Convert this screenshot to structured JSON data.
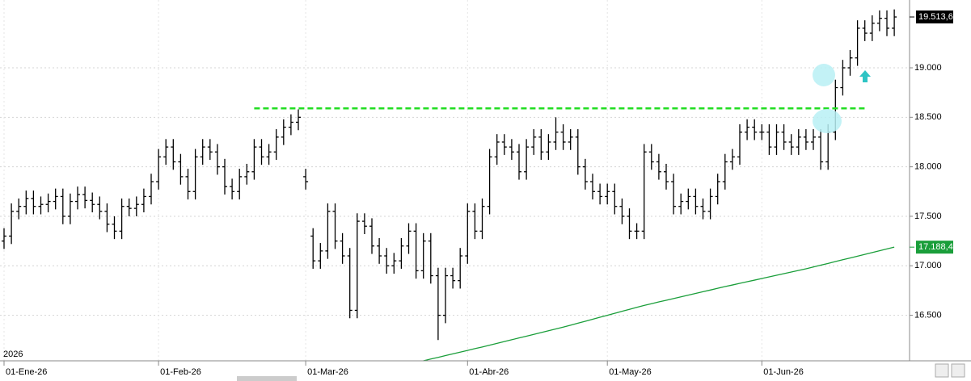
{
  "chart_data": {
    "type": "ohlc",
    "year_label": "2026",
    "categories": [
      "01-Ene-26",
      null,
      null,
      null,
      null,
      null,
      null,
      null,
      null,
      null,
      null,
      null,
      null,
      null,
      null,
      null,
      null,
      null,
      null,
      null,
      null,
      "01-Feb-26",
      null,
      null,
      null,
      null,
      null,
      null,
      null,
      null,
      null,
      null,
      null,
      null,
      null,
      null,
      null,
      null,
      null,
      null,
      null,
      "01-Mar-26",
      null,
      null,
      null,
      null,
      null,
      null,
      null,
      null,
      null,
      null,
      null,
      null,
      null,
      null,
      null,
      null,
      null,
      null,
      null,
      null,
      null,
      "01-Abr-26",
      null,
      null,
      null,
      null,
      null,
      null,
      null,
      null,
      null,
      null,
      null,
      null,
      null,
      null,
      null,
      null,
      null,
      null,
      "01-May-26",
      null,
      null,
      null,
      null,
      null,
      null,
      null,
      null,
      null,
      null,
      null,
      null,
      null,
      null,
      null,
      null,
      null,
      null,
      null,
      null,
      "01-Jun-26",
      null,
      null,
      null,
      null,
      null,
      null,
      null,
      null,
      null,
      null,
      null,
      null,
      null,
      null,
      null,
      null,
      null,
      null
    ],
    "open": [
      17250,
      17300,
      17550,
      17600,
      17680,
      17600,
      17620,
      17650,
      17700,
      17500,
      17650,
      17720,
      17660,
      17620,
      17550,
      17420,
      17350,
      17600,
      17580,
      17620,
      17700,
      17850,
      18100,
      18200,
      18050,
      17900,
      17750,
      18100,
      18200,
      18150,
      18000,
      17800,
      17750,
      17900,
      17950,
      18200,
      18100,
      18150,
      18300,
      18400,
      18450,
      17900,
      17300,
      17050,
      17150,
      17550,
      17250,
      17100,
      16550,
      17450,
      17400,
      17200,
      17100,
      17000,
      17050,
      17200,
      17350,
      16950,
      17250,
      16900,
      16500,
      16900,
      16850,
      17100,
      17550,
      17350,
      17600,
      18100,
      18250,
      18200,
      18150,
      17950,
      18200,
      18300,
      18150,
      18250,
      18350,
      18250,
      18300,
      18000,
      17850,
      17750,
      17700,
      17750,
      17600,
      17500,
      17350,
      17350,
      18150,
      18050,
      17950,
      17850,
      17600,
      17650,
      17700,
      17600,
      17550,
      17700,
      17850,
      18050,
      18100,
      18350,
      18400,
      18350,
      18350,
      18200,
      18350,
      18250,
      18200,
      18300,
      18250,
      18300,
      18050,
      18350,
      18800,
      19000,
      19100,
      19400,
      19350,
      19450,
      19500,
      19400
    ],
    "high": [
      17380,
      17630,
      17680,
      17760,
      17760,
      17700,
      17730,
      17780,
      17780,
      17730,
      17800,
      17800,
      17740,
      17700,
      17630,
      17500,
      17680,
      17680,
      17700,
      17780,
      17930,
      18180,
      18280,
      18280,
      18130,
      17980,
      18180,
      18280,
      18280,
      18230,
      18080,
      17880,
      17980,
      18030,
      18280,
      18280,
      18230,
      18380,
      18480,
      18530,
      18580,
      17980,
      17380,
      17230,
      17630,
      17630,
      17330,
      17180,
      17530,
      17530,
      17480,
      17280,
      17180,
      17130,
      17280,
      17430,
      17430,
      17330,
      17330,
      16980,
      16980,
      16980,
      17180,
      17630,
      17630,
      17680,
      18180,
      18330,
      18330,
      18280,
      18230,
      18280,
      18380,
      18380,
      18330,
      18500,
      18430,
      18380,
      18380,
      18080,
      17930,
      17830,
      17830,
      17830,
      17680,
      17580,
      17430,
      18230,
      18230,
      18130,
      18030,
      17930,
      17730,
      17780,
      17780,
      17680,
      17780,
      17930,
      18130,
      18180,
      18430,
      18480,
      18480,
      18430,
      18430,
      18430,
      18430,
      18330,
      18380,
      18380,
      18380,
      18380,
      18430,
      18880,
      19080,
      19180,
      19480,
      19480,
      19530,
      19580,
      19580,
      19590
    ],
    "low": [
      17170,
      17220,
      17470,
      17520,
      17520,
      17520,
      17540,
      17570,
      17420,
      17420,
      17570,
      17580,
      17540,
      17470,
      17340,
      17270,
      17270,
      17500,
      17500,
      17540,
      17620,
      17770,
      18020,
      17970,
      17820,
      17670,
      17670,
      18020,
      18070,
      17920,
      17720,
      17670,
      17670,
      17820,
      17870,
      18020,
      18020,
      18070,
      18220,
      18320,
      18370,
      17770,
      16970,
      16970,
      17070,
      17170,
      17020,
      16470,
      16470,
      17320,
      17120,
      17020,
      16920,
      16920,
      16970,
      17120,
      16870,
      16870,
      16820,
      16250,
      16420,
      16770,
      16770,
      17020,
      17270,
      17270,
      17520,
      18020,
      18120,
      18070,
      17870,
      17870,
      18120,
      18070,
      18070,
      18170,
      18170,
      18170,
      17920,
      17770,
      17670,
      17620,
      17620,
      17520,
      17420,
      17270,
      17270,
      17270,
      17970,
      17870,
      17770,
      17520,
      17520,
      17570,
      17520,
      17470,
      17470,
      17620,
      17770,
      17970,
      18020,
      18270,
      18270,
      18270,
      18120,
      18120,
      18170,
      18120,
      18120,
      18170,
      18170,
      17970,
      17970,
      18270,
      18720,
      18920,
      19020,
      19270,
      19270,
      19370,
      19320,
      19320
    ],
    "close": [
      17300,
      17550,
      17600,
      17680,
      17600,
      17620,
      17650,
      17700,
      17500,
      17650,
      17720,
      17660,
      17620,
      17550,
      17420,
      17350,
      17600,
      17580,
      17620,
      17700,
      17850,
      18100,
      18200,
      18050,
      17900,
      17750,
      18100,
      18200,
      18150,
      18000,
      17800,
      17750,
      17900,
      17950,
      18200,
      18100,
      18150,
      18300,
      18400,
      18450,
      18500,
      17850,
      17050,
      17150,
      17550,
      17250,
      17100,
      16550,
      17450,
      17400,
      17200,
      17100,
      17000,
      17050,
      17200,
      17350,
      16950,
      17250,
      16900,
      16500,
      16900,
      16850,
      17100,
      17550,
      17350,
      17600,
      18100,
      18250,
      18200,
      18150,
      17950,
      18200,
      18300,
      18150,
      18250,
      18350,
      18250,
      18300,
      18000,
      17850,
      17750,
      17700,
      17750,
      17600,
      17500,
      17350,
      17350,
      18150,
      18050,
      17950,
      17850,
      17600,
      17650,
      17700,
      17600,
      17550,
      17700,
      17850,
      18050,
      18100,
      18350,
      18400,
      18350,
      18350,
      18200,
      18350,
      18250,
      18200,
      18300,
      18250,
      18300,
      18050,
      18350,
      18800,
      19000,
      19100,
      19400,
      19350,
      19450,
      19500,
      19400,
      19513.6
    ],
    "bar_color": "#000000",
    "ma": [
      null,
      null,
      null,
      null,
      null,
      null,
      null,
      null,
      null,
      null,
      null,
      null,
      null,
      null,
      null,
      null,
      null,
      null,
      null,
      null,
      null,
      null,
      null,
      null,
      null,
      null,
      null,
      null,
      null,
      null,
      null,
      null,
      null,
      null,
      null,
      null,
      null,
      null,
      null,
      null,
      null,
      null,
      null,
      null,
      null,
      null,
      null,
      null,
      null,
      null,
      null,
      null,
      null,
      null,
      null,
      null,
      null,
      16040,
      16058,
      16075,
      16093,
      16110,
      16128,
      16145,
      16163,
      16180,
      16198,
      16216,
      16235,
      16253,
      16271,
      16289,
      16307,
      16325,
      16344,
      16362,
      16380,
      16400,
      16420,
      16440,
      16460,
      16480,
      16500,
      16520,
      16540,
      16560,
      16580,
      16600,
      16617,
      16635,
      16652,
      16669,
      16686,
      16704,
      16721,
      16738,
      16755,
      16773,
      16790,
      16806,
      16823,
      16839,
      16855,
      16872,
      16888,
      16904,
      16921,
      16937,
      16953,
      16970,
      16988,
      17006,
      17024,
      17043,
      17061,
      17079,
      17097,
      17115,
      17134,
      17152,
      17170,
      17188.4
    ],
    "ma_color": "#1a9e3a",
    "last_close_label": "19.513,6",
    "last_ma_label": "17.188,4",
    "resistance": {
      "value": 18590,
      "start": 34,
      "end": 117,
      "color": "#22dd22"
    },
    "ylim": [
      16040,
      19685
    ],
    "yticks": [
      {
        "value": 16500,
        "label": "16.500"
      },
      {
        "value": 17000,
        "label": "17.000"
      },
      {
        "value": 17500,
        "label": "17.500"
      },
      {
        "value": 18000,
        "label": "18.000"
      },
      {
        "value": 18500,
        "label": "18.500"
      },
      {
        "value": 19000,
        "label": "19.000"
      }
    ],
    "grid": true
  }
}
